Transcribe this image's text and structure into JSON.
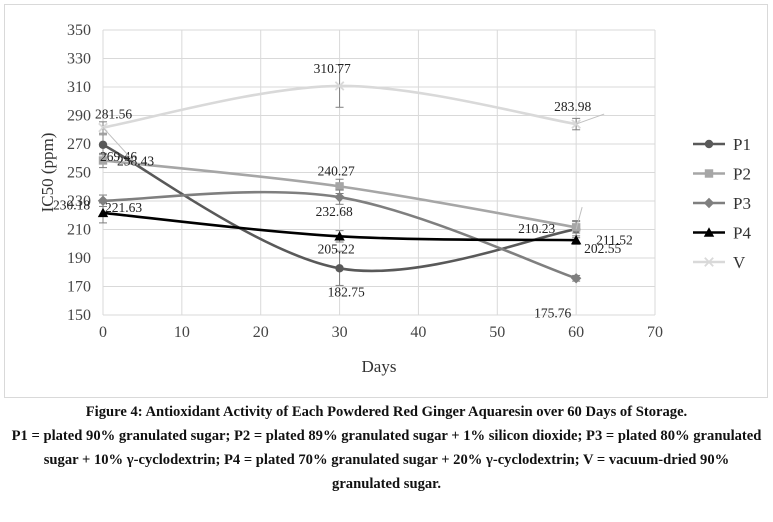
{
  "chart_data": {
    "type": "line",
    "xlabel": "Days",
    "ylabel": "IC50 (ppm)",
    "xlim": [
      0,
      70
    ],
    "ylim": [
      150,
      350
    ],
    "x_ticks": [
      0,
      10,
      20,
      30,
      40,
      50,
      60,
      70
    ],
    "y_ticks": [
      150,
      170,
      190,
      210,
      230,
      250,
      270,
      290,
      310,
      330,
      350
    ],
    "grid": true,
    "smooth": true,
    "legend_position": "right",
    "x": [
      0,
      30,
      60
    ],
    "series": [
      {
        "name": "P1",
        "values": [
          269.46,
          182.75,
          210.23
        ],
        "labels": [
          "269.46",
          "182.75",
          "210.23"
        ],
        "errors": [
          7,
          12,
          6
        ],
        "color": "#595959",
        "marker": "circle"
      },
      {
        "name": "P2",
        "values": [
          258.43,
          240.27,
          211.52
        ],
        "labels": [
          "258.43",
          "240.27",
          "211.52"
        ],
        "errors": [
          5,
          5,
          4
        ],
        "color": "#a6a6a6",
        "marker": "square"
      },
      {
        "name": "P3",
        "values": [
          230.18,
          232.68,
          175.76
        ],
        "labels": [
          "230.18",
          "232.68",
          "175.76"
        ],
        "errors": [
          4,
          5,
          2
        ],
        "color": "#7f7f7f",
        "marker": "diamond"
      },
      {
        "name": "P4",
        "values": [
          221.63,
          205.22,
          202.55
        ],
        "labels": [
          "221.63",
          "205.22",
          "202.55"
        ],
        "errors": [
          7,
          4,
          3
        ],
        "color": "#000000",
        "marker": "triangle"
      },
      {
        "name": "V",
        "values": [
          281.56,
          310.77,
          283.98
        ],
        "labels": [
          "281.56",
          "310.77",
          "283.98"
        ],
        "errors": [
          4,
          15,
          4
        ],
        "color": "#d9d9d9",
        "marker": "x"
      }
    ]
  },
  "caption": {
    "title": "Figure 4: Antioxidant Activity of Each Powdered Red Ginger Aquaresin over 60 Days of Storage.",
    "notes": "P1 = plated 90% granulated sugar; P2 = plated 89% granulated sugar + 1% silicon dioxide; P3 = plated 80% granulated sugar + 10% γ-cyclodextrin; P4 = plated 70% granulated sugar + 20% γ-cyclodextrin; V = vacuum-dried 90% granulated sugar."
  }
}
